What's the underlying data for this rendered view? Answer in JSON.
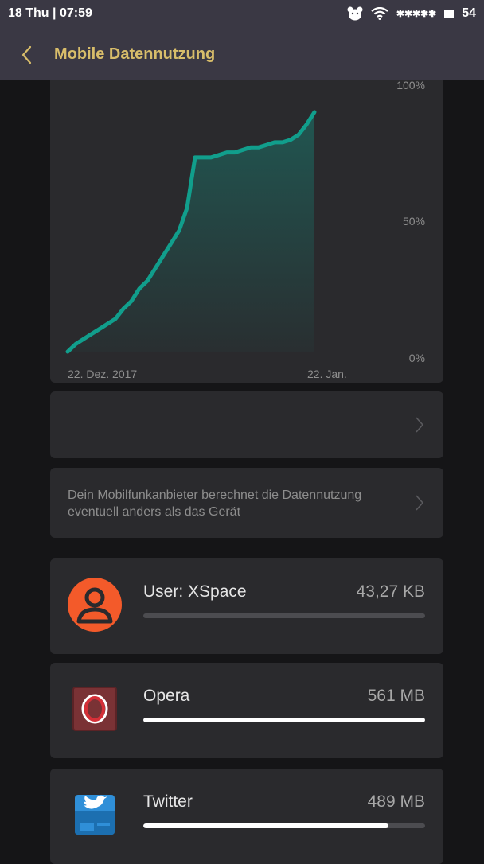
{
  "status": {
    "date": "18 Thu",
    "time": "07:59",
    "signal": "✱✱✱✱✱",
    "battery": "54"
  },
  "header": {
    "title": "Mobile Datennutzung"
  },
  "chart_data": {
    "type": "area",
    "title": "",
    "x_labels": [
      "22. Dez. 2017",
      "22. Jan."
    ],
    "y_ticks": [
      "100%",
      "50%",
      "0%"
    ],
    "ylim": [
      0,
      100
    ],
    "x": [
      0,
      1,
      2,
      3,
      4,
      5,
      6,
      7,
      8,
      9,
      10,
      11,
      12,
      13,
      14,
      15,
      16,
      17,
      18,
      19,
      20,
      21,
      22,
      23,
      24,
      25,
      26,
      27,
      28,
      29,
      30,
      31
    ],
    "values": [
      0,
      3,
      5,
      7,
      9,
      11,
      13,
      17,
      20,
      25,
      28,
      33,
      38,
      43,
      48,
      57,
      77,
      77,
      77,
      78,
      79,
      79,
      80,
      81,
      81,
      82,
      83,
      83,
      84,
      86,
      90,
      95
    ],
    "line_color": "#119e8c"
  },
  "plan_card": {
    "label": ""
  },
  "info_card": {
    "text": "Dein Mobilfunkanbieter berechnet die Datennutzung eventuell anders als das Gerät"
  },
  "apps": [
    {
      "name": "User: XSpace",
      "size": "43,27 KB",
      "usage_fraction": 0.0,
      "icon": "user-icon"
    },
    {
      "name": "Opera",
      "size": "561 MB",
      "usage_fraction": 1.0,
      "icon": "opera-icon"
    },
    {
      "name": "Twitter",
      "size": "489 MB",
      "usage_fraction": 0.87,
      "icon": "twitter-icon"
    }
  ],
  "colors": {
    "accent": "#d8bd6a",
    "chart": "#119e8c"
  }
}
